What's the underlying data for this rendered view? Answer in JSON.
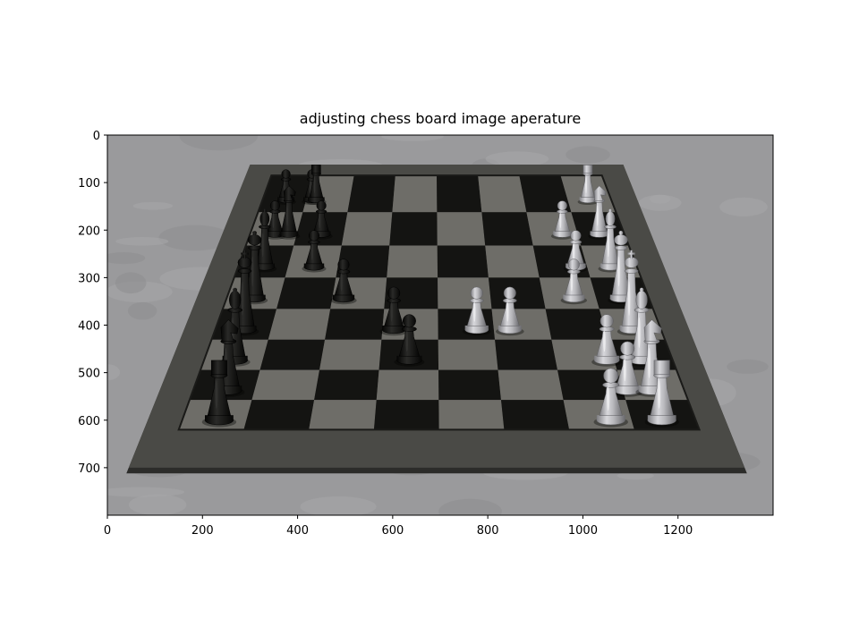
{
  "title": "adjusting chess board image aperature",
  "x_axis": {
    "range": [
      0,
      1400
    ],
    "ticks": [
      0,
      200,
      400,
      600,
      800,
      1000,
      1200
    ]
  },
  "y_axis": {
    "range": [
      0,
      800
    ],
    "inverted": true,
    "ticks": [
      0,
      100,
      200,
      300,
      400,
      500,
      600,
      700
    ]
  },
  "image": {
    "subject": "chessboard-photo",
    "board_size": 8,
    "colors": {
      "background": "#9a9a9c",
      "board_frame": "#4a4a46",
      "light_square": "#6e6d68",
      "dark_square": "#141412",
      "black_piece": "#0c0c0a",
      "white_piece": "#b4b4b8"
    },
    "black_pieces": [
      {
        "type": "pawn",
        "file": 0,
        "rank": 0.0
      },
      {
        "type": "pawn",
        "file": 0,
        "rank": 0.6
      },
      {
        "type": "pawn",
        "file": 1,
        "rank": 0.0
      },
      {
        "type": "pawn",
        "file": 1,
        "rank": 1.0
      },
      {
        "type": "pawn",
        "file": 2,
        "rank": 1.0
      },
      {
        "type": "pawn",
        "file": 3,
        "rank": 1.7
      },
      {
        "type": "pawn",
        "file": 4,
        "rank": 2.7
      },
      {
        "type": "pawn",
        "file": 5,
        "rank": 3.0
      },
      {
        "type": "rook",
        "file": 7,
        "rank": 0.05
      },
      {
        "type": "knight",
        "file": 6,
        "rank": 0.05
      },
      {
        "type": "bishop",
        "file": 5,
        "rank": 0.0
      },
      {
        "type": "king",
        "file": 4,
        "rank": 0.0
      },
      {
        "type": "queen",
        "file": 3,
        "rank": 0.0
      },
      {
        "type": "bishop",
        "file": 2,
        "rank": 0.0
      },
      {
        "type": "knight",
        "file": 1,
        "rank": 0.3
      },
      {
        "type": "rook",
        "file": 0,
        "rank": 0.7
      }
    ],
    "white_pieces": [
      {
        "type": "pawn",
        "file": 1,
        "rank": 6.2
      },
      {
        "type": "pawn",
        "file": 2,
        "rank": 6.3
      },
      {
        "type": "pawn",
        "file": 3,
        "rank": 6.1
      },
      {
        "type": "pawn",
        "file": 4,
        "rank": 4.8
      },
      {
        "type": "pawn",
        "file": 4,
        "rank": 4.2
      },
      {
        "type": "pawn",
        "file": 5,
        "rank": 6.4
      },
      {
        "type": "pawn",
        "file": 6,
        "rank": 6.6
      },
      {
        "type": "pawn",
        "file": 7,
        "rank": 6.2
      },
      {
        "type": "rook",
        "file": 0,
        "rank": 7.0
      },
      {
        "type": "knight",
        "file": 1,
        "rank": 7.0
      },
      {
        "type": "bishop",
        "file": 2,
        "rank": 7.0
      },
      {
        "type": "queen",
        "file": 3,
        "rank": 7.0
      },
      {
        "type": "king",
        "file": 4,
        "rank": 7.0
      },
      {
        "type": "bishop",
        "file": 5,
        "rank": 7.0
      },
      {
        "type": "knight",
        "file": 6,
        "rank": 7.0
      },
      {
        "type": "rook",
        "file": 7,
        "rank": 7.0
      }
    ]
  }
}
